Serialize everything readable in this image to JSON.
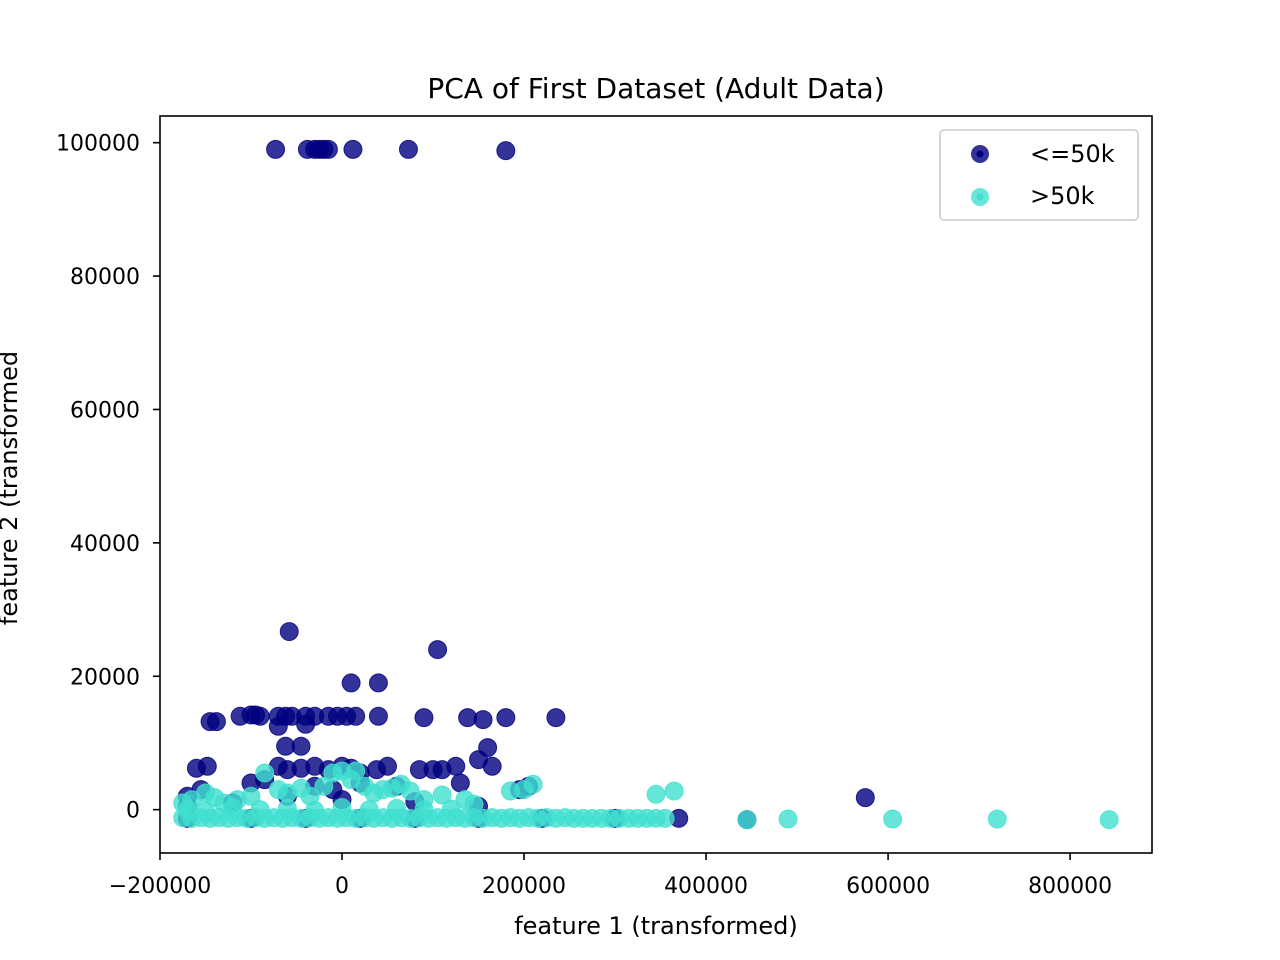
{
  "chart_data": {
    "type": "scatter",
    "title": "PCA of First Dataset (Adult Data)",
    "xlabel": "feature 1 (transformed)",
    "ylabel": "feature 2 (transformed",
    "xlim": [
      -200000,
      890000
    ],
    "ylim": [
      -6500,
      104000
    ],
    "xticks": [
      -200000,
      0,
      200000,
      400000,
      600000,
      800000
    ],
    "xtick_labels": [
      "−200000",
      "0",
      "200000",
      "400000",
      "600000",
      "800000"
    ],
    "yticks": [
      0,
      20000,
      40000,
      60000,
      80000,
      100000
    ],
    "ytick_labels": [
      "0",
      "20000",
      "40000",
      "60000",
      "80000",
      "100000"
    ],
    "grid": false,
    "legend_position": "top-right",
    "series": [
      {
        "name": "<=50k",
        "color": "#000080",
        "points": [
          [
            -73000,
            99000
          ],
          [
            -38000,
            99000
          ],
          [
            -30000,
            99000
          ],
          [
            -25000,
            99000
          ],
          [
            -20000,
            99000
          ],
          [
            -15000,
            99000
          ],
          [
            12000,
            99000
          ],
          [
            73000,
            99000
          ],
          [
            180000,
            98800
          ],
          [
            -58000,
            26700
          ],
          [
            105000,
            24000
          ],
          [
            10000,
            19000
          ],
          [
            40000,
            19000
          ],
          [
            -145000,
            13200
          ],
          [
            -138000,
            13200
          ],
          [
            -112000,
            14000
          ],
          [
            -100000,
            14200
          ],
          [
            -95000,
            14200
          ],
          [
            -90000,
            14000
          ],
          [
            -70000,
            14000
          ],
          [
            -62000,
            14000
          ],
          [
            -55000,
            14000
          ],
          [
            -40000,
            14000
          ],
          [
            -30000,
            14000
          ],
          [
            -15000,
            14000
          ],
          [
            -5000,
            14000
          ],
          [
            5000,
            14000
          ],
          [
            15000,
            14000
          ],
          [
            40000,
            14000
          ],
          [
            90000,
            13800
          ],
          [
            138000,
            13800
          ],
          [
            155000,
            13500
          ],
          [
            180000,
            13800
          ],
          [
            235000,
            13800
          ],
          [
            -62000,
            9500
          ],
          [
            -45000,
            9500
          ],
          [
            -70000,
            12500
          ],
          [
            -40000,
            12800
          ],
          [
            160000,
            9300
          ],
          [
            150000,
            7500
          ],
          [
            -160000,
            6200
          ],
          [
            -148000,
            6500
          ],
          [
            -70000,
            6500
          ],
          [
            -60000,
            6000
          ],
          [
            -45000,
            6200
          ],
          [
            -30000,
            6500
          ],
          [
            -15000,
            6000
          ],
          [
            0,
            6500
          ],
          [
            10000,
            6200
          ],
          [
            20000,
            5500
          ],
          [
            38000,
            6000
          ],
          [
            50000,
            6500
          ],
          [
            85000,
            6000
          ],
          [
            100000,
            6000
          ],
          [
            110000,
            6000
          ],
          [
            125000,
            6500
          ],
          [
            165000,
            6500
          ],
          [
            -170000,
            2000
          ],
          [
            -155000,
            3000
          ],
          [
            -100000,
            4000
          ],
          [
            -85000,
            4500
          ],
          [
            -30000,
            3500
          ],
          [
            -10000,
            3000
          ],
          [
            20000,
            4000
          ],
          [
            60000,
            3500
          ],
          [
            130000,
            4000
          ],
          [
            195000,
            3000
          ],
          [
            205000,
            3500
          ],
          [
            -170000,
            500
          ],
          [
            -120000,
            1000
          ],
          [
            -60000,
            2000
          ],
          [
            0,
            1500
          ],
          [
            80000,
            1200
          ],
          [
            150000,
            500
          ],
          [
            -170000,
            -1300
          ],
          [
            -100000,
            -1300
          ],
          [
            -40000,
            -1300
          ],
          [
            20000,
            -1300
          ],
          [
            80000,
            -1300
          ],
          [
            150000,
            -1300
          ],
          [
            220000,
            -1300
          ],
          [
            300000,
            -1300
          ],
          [
            370000,
            -1300
          ],
          [
            445000,
            -1500
          ],
          [
            575000,
            1800
          ]
        ]
      },
      {
        "name": ">50k",
        "color": "#40E0D0",
        "points": [
          [
            -175000,
            1000
          ],
          [
            -165000,
            1500
          ],
          [
            -150000,
            2500
          ],
          [
            -140000,
            1800
          ],
          [
            -130000,
            1000
          ],
          [
            -115000,
            1500
          ],
          [
            -100000,
            2000
          ],
          [
            -85000,
            5500
          ],
          [
            -70000,
            3000
          ],
          [
            -60000,
            2500
          ],
          [
            -45000,
            3200
          ],
          [
            -35000,
            2000
          ],
          [
            -20000,
            3500
          ],
          [
            -10000,
            5500
          ],
          [
            0,
            5800
          ],
          [
            10000,
            4500
          ],
          [
            15000,
            5800
          ],
          [
            25000,
            3500
          ],
          [
            35000,
            2500
          ],
          [
            45000,
            3000
          ],
          [
            55000,
            3200
          ],
          [
            65000,
            3800
          ],
          [
            75000,
            2800
          ],
          [
            90000,
            1500
          ],
          [
            110000,
            2200
          ],
          [
            135000,
            1500
          ],
          [
            145000,
            800
          ],
          [
            185000,
            2800
          ],
          [
            200000,
            3000
          ],
          [
            210000,
            3800
          ],
          [
            345000,
            2300
          ],
          [
            365000,
            2800
          ],
          [
            -175000,
            -1200
          ],
          [
            -165000,
            -1300
          ],
          [
            -155000,
            -1200
          ],
          [
            -145000,
            -1300
          ],
          [
            -135000,
            -1200
          ],
          [
            -125000,
            -1300
          ],
          [
            -115000,
            -1200
          ],
          [
            -105000,
            -1300
          ],
          [
            -95000,
            -1200
          ],
          [
            -85000,
            -1300
          ],
          [
            -75000,
            -1200
          ],
          [
            -65000,
            -1300
          ],
          [
            -55000,
            -1200
          ],
          [
            -45000,
            -1300
          ],
          [
            -35000,
            -1200
          ],
          [
            -25000,
            -1300
          ],
          [
            -15000,
            -1200
          ],
          [
            -5000,
            -1300
          ],
          [
            5000,
            -1200
          ],
          [
            15000,
            -1300
          ],
          [
            25000,
            -1200
          ],
          [
            35000,
            -1300
          ],
          [
            45000,
            -1200
          ],
          [
            55000,
            -1300
          ],
          [
            65000,
            -1200
          ],
          [
            75000,
            -1300
          ],
          [
            85000,
            -1200
          ],
          [
            95000,
            -1300
          ],
          [
            105000,
            -1200
          ],
          [
            115000,
            -1300
          ],
          [
            125000,
            -1200
          ],
          [
            135000,
            -1300
          ],
          [
            145000,
            -1200
          ],
          [
            155000,
            -1300
          ],
          [
            165000,
            -1200
          ],
          [
            175000,
            -1300
          ],
          [
            185000,
            -1200
          ],
          [
            195000,
            -1300
          ],
          [
            205000,
            -1200
          ],
          [
            215000,
            -1300
          ],
          [
            225000,
            -1200
          ],
          [
            235000,
            -1300
          ],
          [
            245000,
            -1200
          ],
          [
            255000,
            -1300
          ],
          [
            265000,
            -1300
          ],
          [
            275000,
            -1300
          ],
          [
            285000,
            -1300
          ],
          [
            295000,
            -1300
          ],
          [
            305000,
            -1300
          ],
          [
            315000,
            -1300
          ],
          [
            325000,
            -1300
          ],
          [
            335000,
            -1300
          ],
          [
            345000,
            -1300
          ],
          [
            355000,
            -1300
          ],
          [
            -170000,
            0
          ],
          [
            -150000,
            -200
          ],
          [
            -120000,
            300
          ],
          [
            -90000,
            0
          ],
          [
            -60000,
            200
          ],
          [
            -30000,
            -100
          ],
          [
            0,
            300
          ],
          [
            30000,
            0
          ],
          [
            60000,
            200
          ],
          [
            90000,
            0
          ],
          [
            120000,
            100
          ],
          [
            445000,
            -1500
          ],
          [
            490000,
            -1400
          ],
          [
            605000,
            -1400
          ],
          [
            720000,
            -1400
          ],
          [
            843000,
            -1500
          ]
        ]
      }
    ]
  }
}
